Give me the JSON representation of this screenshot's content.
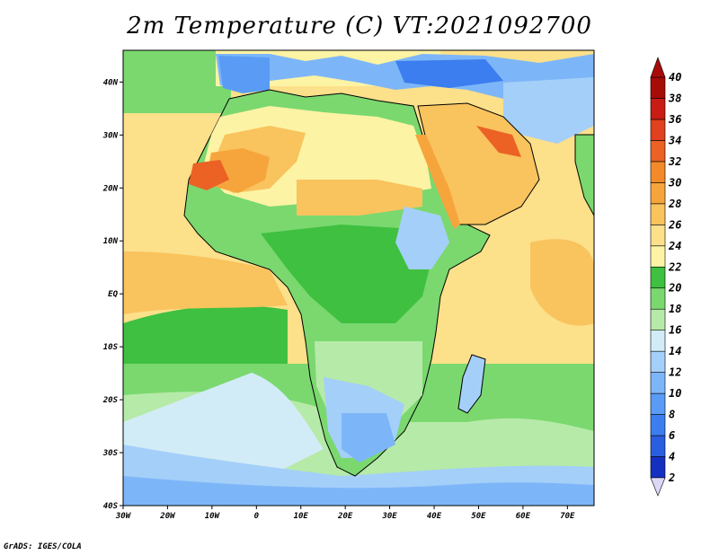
{
  "title": "2m Temperature (C) VT:2021092700",
  "credit": "GrADS: IGES/COLA",
  "map": {
    "lon_range": [
      -30,
      76
    ],
    "lat_range": [
      -40,
      46
    ],
    "x_ticks": [
      {
        "value": -30,
        "label": "30W"
      },
      {
        "value": -20,
        "label": "20W"
      },
      {
        "value": -10,
        "label": "10W"
      },
      {
        "value": 0,
        "label": "0"
      },
      {
        "value": 10,
        "label": "10E"
      },
      {
        "value": 20,
        "label": "20E"
      },
      {
        "value": 30,
        "label": "30E"
      },
      {
        "value": 40,
        "label": "40E"
      },
      {
        "value": 50,
        "label": "50E"
      },
      {
        "value": 60,
        "label": "60E"
      },
      {
        "value": 70,
        "label": "70E"
      }
    ],
    "y_ticks": [
      {
        "value": 40,
        "label": "40N"
      },
      {
        "value": 30,
        "label": "30N"
      },
      {
        "value": 20,
        "label": "20N"
      },
      {
        "value": 10,
        "label": "10N"
      },
      {
        "value": 0,
        "label": "EQ"
      },
      {
        "value": -10,
        "label": "10S"
      },
      {
        "value": -20,
        "label": "20S"
      },
      {
        "value": -30,
        "label": "30S"
      },
      {
        "value": -40,
        "label": "40S"
      }
    ]
  },
  "colorbar": {
    "labels": [
      "2",
      "4",
      "6",
      "8",
      "10",
      "12",
      "14",
      "16",
      "18",
      "20",
      "22",
      "24",
      "26",
      "28",
      "30",
      "32",
      "34",
      "36",
      "38",
      "40"
    ],
    "colors": [
      "#0a1a78",
      "#1530c0",
      "#2a5ee0",
      "#3c7ef0",
      "#5a9cf5",
      "#7db6f8",
      "#a4cff9",
      "#d2ecf7",
      "#b6eaa8",
      "#7ad86f",
      "#3fc040",
      "#fdf3a4",
      "#fce08a",
      "#f9c35e",
      "#f6a53c",
      "#f28a2a",
      "#eb6224",
      "#e0411e",
      "#c81c14",
      "#a80c08"
    ],
    "under_color": "#ddd8f6",
    "over_color": "#a80c08"
  }
}
